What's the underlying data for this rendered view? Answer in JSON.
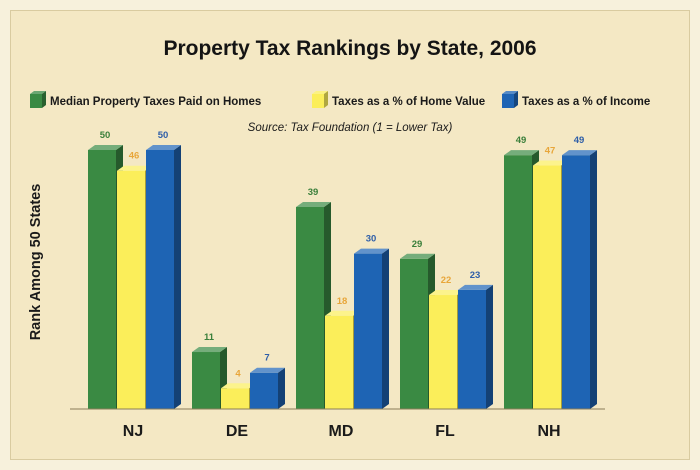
{
  "chart_data": {
    "type": "bar",
    "title": "Property Tax Rankings by State, 2006",
    "source": "Source:  Tax Foundation     (1 = Lower Tax)",
    "ylabel": "Rank Among 50 States",
    "xlabel": "",
    "ylim": [
      0,
      50
    ],
    "grid": false,
    "legend_position": "top",
    "categories": [
      "NJ",
      "DE",
      "MD",
      "FL",
      "NH"
    ],
    "series": [
      {
        "name": "Median Property Taxes Paid on Homes",
        "values": [
          50,
          11,
          39,
          29,
          49
        ],
        "color": "#3a8a43",
        "label_color": "#3a7f3a"
      },
      {
        "name": "Taxes as a % of Home Value",
        "values": [
          46,
          4,
          18,
          22,
          47
        ],
        "color": "#fbee5a",
        "label_color": "#e8a63a"
      },
      {
        "name": "Taxes as a % of Income",
        "values": [
          50,
          7,
          30,
          23,
          49
        ],
        "color": "#1e64b4",
        "label_color": "#2e5ea8"
      }
    ]
  }
}
